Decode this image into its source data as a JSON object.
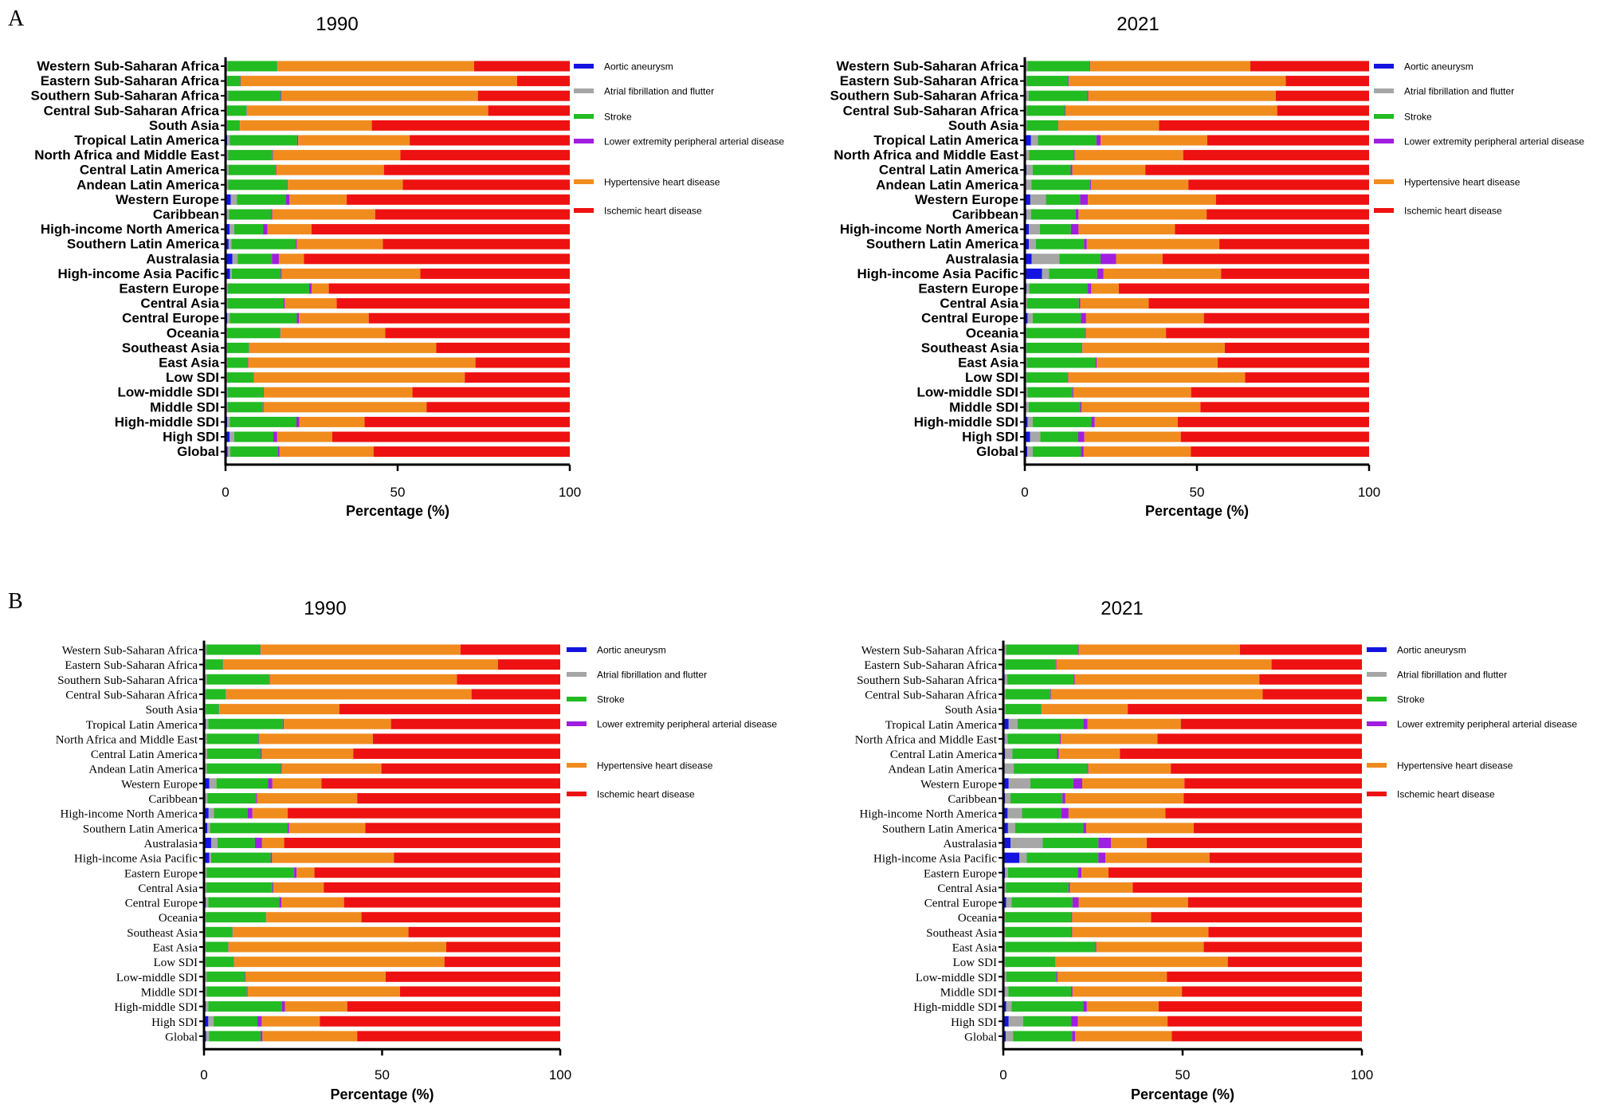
{
  "panels": [
    {
      "letter": "A"
    },
    {
      "letter": "B"
    }
  ],
  "chart_data": [
    {
      "type": "bar",
      "orientation": "horizontal",
      "stacked": true,
      "panel": "A",
      "title": "1990",
      "xlabel": "Percentage (%)",
      "ylabel": "",
      "xlim": [
        0,
        100
      ],
      "xticks": [
        "0",
        "50",
        "100"
      ],
      "legend_position": "right",
      "categories": [
        "Western Sub-Saharan Africa",
        "Eastern Sub-Saharan Africa",
        "Southern Sub-Saharan Africa",
        "Central Sub-Saharan Africa",
        "South Asia",
        "Tropical Latin America",
        "North Africa and Middle East",
        "Central Latin America",
        "Andean Latin America",
        "Western Europe",
        "Caribbean",
        "High-income North America",
        "Southern Latin America",
        "Australasia",
        "High-income Asia Pacific",
        "Eastern Europe",
        "Central Asia",
        "Central Europe",
        "Oceania",
        "Southeast Asia",
        "East Asia",
        "Low SDI",
        "Low-middle SDI",
        "Middle SDI",
        "High-middle SDI",
        "High SDI",
        "Global"
      ],
      "series": [
        {
          "name": "Aortic aneurysm",
          "color": "#1414e0",
          "values": [
            0.3,
            0.2,
            0.3,
            0.2,
            0.2,
            0.5,
            0.3,
            0.3,
            0.3,
            1.5,
            0.4,
            1.2,
            0.9,
            2.0,
            1.3,
            0.3,
            0.3,
            0.5,
            0.2,
            0.2,
            0.2,
            0.2,
            0.3,
            0.3,
            0.5,
            1.2,
            0.6
          ]
        },
        {
          "name": "Atrial fibrillation and flutter",
          "color": "#a6a6a6",
          "values": [
            0.4,
            0.3,
            0.5,
            0.3,
            0.3,
            0.7,
            0.5,
            0.6,
            0.5,
            1.8,
            0.6,
            1.3,
            0.8,
            1.5,
            0.5,
            0.4,
            0.3,
            0.7,
            0.3,
            0.3,
            0.3,
            0.3,
            0.4,
            0.4,
            0.7,
            1.3,
            0.8
          ]
        },
        {
          "name": "Stroke",
          "color": "#22bb22",
          "values": [
            14.3,
            3.8,
            15.2,
            5.6,
            3.6,
            19.6,
            12.8,
            13.6,
            17.1,
            14.3,
            12.3,
            8.4,
            18.7,
            10.0,
            14.2,
            23.6,
            16.3,
            19.5,
            15.4,
            6.3,
            6.0,
            7.6,
            10.2,
            10.1,
            19.4,
            11.4,
            13.8
          ]
        },
        {
          "name": "Lower extremity peripheral arterial disease",
          "color": "#a01ee0",
          "values": [
            0.1,
            0.1,
            0.2,
            0.1,
            0.1,
            0.3,
            0.2,
            0.2,
            0.2,
            1.0,
            0.3,
            1.3,
            0.3,
            2.0,
            0.3,
            0.7,
            0.3,
            0.6,
            0.1,
            0.1,
            0.1,
            0.1,
            0.2,
            0.2,
            0.8,
            1.1,
            0.5
          ]
        },
        {
          "name": "Hypertensive heart disease",
          "color": "#f08c1e",
          "values": [
            57.1,
            80.3,
            57.1,
            70.1,
            38.3,
            32.4,
            37.0,
            31.3,
            33.4,
            16.6,
            29.9,
            12.8,
            25.0,
            7.3,
            40.3,
            5.0,
            15.1,
            20.3,
            30.4,
            54.3,
            66.0,
            61.3,
            43.2,
            47.4,
            19.0,
            16.0,
            27.3
          ]
        },
        {
          "name": "Ischemic heart disease",
          "color": "#ee1111",
          "values": [
            27.8,
            15.3,
            26.7,
            23.7,
            57.5,
            46.5,
            49.2,
            54.0,
            48.5,
            64.8,
            56.5,
            75.0,
            54.3,
            77.2,
            43.4,
            70.0,
            67.7,
            58.4,
            53.6,
            38.8,
            27.4,
            30.5,
            45.7,
            41.6,
            59.6,
            69.0,
            57.0
          ]
        }
      ]
    },
    {
      "type": "bar",
      "orientation": "horizontal",
      "stacked": true,
      "panel": "A",
      "title": "2021",
      "xlabel": "Percentage (%)",
      "ylabel": "",
      "xlim": [
        0,
        100
      ],
      "xticks": [
        "0",
        "50",
        "100"
      ],
      "legend_position": "right",
      "categories": [
        "Western Sub-Saharan Africa",
        "Eastern Sub-Saharan Africa",
        "Southern Sub-Saharan Africa",
        "Central Sub-Saharan Africa",
        "South Asia",
        "Tropical Latin America",
        "North Africa and Middle East",
        "Central Latin America",
        "Andean Latin America",
        "Western Europe",
        "Caribbean",
        "High-income North America",
        "Southern Latin America",
        "Australasia",
        "High-income Asia Pacific",
        "Eastern Europe",
        "Central Asia",
        "Central Europe",
        "Oceania",
        "Southeast Asia",
        "East Asia",
        "Low SDI",
        "Low-middle SDI",
        "Middle SDI",
        "High-middle SDI",
        "High SDI",
        "Global"
      ],
      "series": [
        {
          "name": "Aortic aneurysm",
          "color": "#1414e0",
          "values": [
            0.3,
            0.2,
            0.4,
            0.2,
            0.2,
            1.8,
            0.4,
            0.5,
            0.4,
            1.6,
            0.5,
            1.2,
            1.2,
            2.0,
            5.0,
            0.5,
            0.3,
            0.8,
            0.2,
            0.2,
            0.2,
            0.2,
            0.3,
            0.4,
            0.8,
            1.5,
            0.7
          ]
        },
        {
          "name": "Atrial fibrillation and flutter",
          "color": "#a6a6a6",
          "values": [
            0.5,
            0.4,
            0.7,
            0.4,
            0.4,
            2.0,
            0.8,
            1.8,
            1.5,
            4.5,
            1.3,
            3.2,
            2.0,
            8.0,
            2.0,
            0.8,
            0.4,
            1.5,
            0.3,
            0.3,
            0.4,
            0.3,
            0.5,
            0.7,
            1.5,
            3.0,
            1.6
          ]
        },
        {
          "name": "Stroke",
          "color": "#22bb22",
          "values": [
            18.0,
            12.0,
            17.0,
            11.0,
            9.0,
            17.0,
            13.0,
            11.0,
            17.0,
            10.0,
            13.0,
            9.0,
            14.0,
            12.0,
            14.0,
            17.0,
            15.0,
            14.0,
            17.0,
            16.0,
            20.0,
            12.0,
            13.0,
            15.0,
            17.0,
            11.0,
            14.0
          ]
        },
        {
          "name": "Lower extremity peripheral arterial disease",
          "color": "#a01ee0",
          "values": [
            0.2,
            0.2,
            0.3,
            0.2,
            0.1,
            1.2,
            0.3,
            0.5,
            0.3,
            2.2,
            0.8,
            2.2,
            0.8,
            4.5,
            1.8,
            1.0,
            0.4,
            1.5,
            0.2,
            0.2,
            0.3,
            0.1,
            0.3,
            0.4,
            1.0,
            1.8,
            0.8
          ]
        },
        {
          "name": "Hypertensive heart disease",
          "color": "#f08c1e",
          "values": [
            46.5,
            63.0,
            54.5,
            61.5,
            29.3,
            31.0,
            31.5,
            21.2,
            28.3,
            37.2,
            37.2,
            28.0,
            38.5,
            13.5,
            34.2,
            8.0,
            19.9,
            34.2,
            23.3,
            41.4,
            35.1,
            51.4,
            34.2,
            34.5,
            24.1,
            28.0,
            31.1
          ]
        },
        {
          "name": "Ischemic heart disease",
          "color": "#ee1111",
          "values": [
            34.5,
            24.2,
            27.1,
            26.7,
            61.0,
            47.0,
            54.0,
            65.0,
            52.5,
            44.5,
            47.2,
            56.4,
            43.5,
            60.0,
            43.0,
            72.7,
            64.0,
            48.0,
            59.0,
            41.9,
            44.0,
            36.0,
            51.7,
            49.0,
            55.6,
            54.7,
            51.8
          ]
        }
      ]
    },
    {
      "type": "bar",
      "orientation": "horizontal",
      "stacked": true,
      "panel": "B",
      "title": "1990",
      "xlabel": "Percentage (%)",
      "ylabel": "",
      "xlim": [
        0,
        100
      ],
      "xticks": [
        "0",
        "50",
        "100"
      ],
      "legend_position": "right",
      "categories": [
        "Western Sub-Saharan Africa",
        "Eastern Sub-Saharan Africa",
        "Southern Sub-Saharan Africa",
        "Central Sub-Saharan Africa",
        "South Asia",
        "Tropical Latin America",
        "North Africa and Middle East",
        "Central Latin America",
        "Andean Latin America",
        "Western Europe",
        "Caribbean",
        "High-income North America",
        "Southern Latin America",
        "Australasia",
        "High-income Asia Pacific",
        "Eastern Europe",
        "Central Asia",
        "Central Europe",
        "Oceania",
        "Southeast Asia",
        "East Asia",
        "Low SDI",
        "Low-middle SDI",
        "Middle SDI",
        "High-middle SDI",
        "High SDI",
        "Global"
      ],
      "series": [
        {
          "name": "Aortic aneurysm",
          "color": "#1414e0",
          "values": [
            0.3,
            0.2,
            0.3,
            0.2,
            0.2,
            0.5,
            0.3,
            0.3,
            0.3,
            1.5,
            0.4,
            1.3,
            0.9,
            2.0,
            1.5,
            0.3,
            0.3,
            0.5,
            0.2,
            0.2,
            0.2,
            0.2,
            0.3,
            0.3,
            0.5,
            1.2,
            0.6
          ]
        },
        {
          "name": "Atrial fibrillation and flutter",
          "color": "#a6a6a6",
          "values": [
            0.4,
            0.3,
            0.5,
            0.3,
            0.3,
            0.7,
            0.5,
            0.6,
            0.5,
            2.0,
            0.6,
            1.5,
            0.8,
            1.8,
            0.5,
            0.4,
            0.3,
            0.7,
            0.3,
            0.3,
            0.3,
            0.3,
            0.4,
            0.4,
            0.7,
            1.5,
            0.8
          ]
        },
        {
          "name": "Stroke",
          "color": "#22bb22",
          "values": [
            15.1,
            4.8,
            17.5,
            5.6,
            3.7,
            20.9,
            14.5,
            15.0,
            20.8,
            14.5,
            13.6,
            9.5,
            21.8,
            10.5,
            16.7,
            24.6,
            18.6,
            19.9,
            16.9,
            7.5,
            6.3,
            7.8,
            10.8,
            11.3,
            20.7,
            12.3,
            14.5
          ]
        },
        {
          "name": "Lower extremity peripheral arterial disease",
          "color": "#a01ee0",
          "values": [
            0.1,
            0.1,
            0.2,
            0.1,
            0.1,
            0.3,
            0.2,
            0.3,
            0.2,
            1.2,
            0.3,
            1.3,
            0.4,
            2.0,
            0.4,
            0.7,
            0.3,
            0.6,
            0.1,
            0.1,
            0.1,
            0.1,
            0.2,
            0.2,
            0.8,
            1.2,
            0.5
          ]
        },
        {
          "name": "Hypertensive heart disease",
          "color": "#f08c1e",
          "values": [
            56.1,
            77.1,
            52.5,
            68.9,
            33.7,
            30.1,
            31.9,
            25.7,
            28.0,
            13.8,
            28.1,
            9.9,
            21.4,
            6.2,
            34.2,
            5.0,
            14.1,
            17.6,
            26.7,
            49.3,
            61.1,
            59.1,
            39.3,
            42.8,
            17.5,
            16.3,
            26.6
          ]
        },
        {
          "name": "Ischemic heart disease",
          "color": "#ee1111",
          "values": [
            28.0,
            17.5,
            29.0,
            24.9,
            62.0,
            47.5,
            52.6,
            58.1,
            50.2,
            67.0,
            57.0,
            76.5,
            54.7,
            77.5,
            46.7,
            69.0,
            66.4,
            60.7,
            55.8,
            42.6,
            32.0,
            32.5,
            49.0,
            45.0,
            59.8,
            67.5,
            57.0
          ]
        }
      ]
    },
    {
      "type": "bar",
      "orientation": "horizontal",
      "stacked": true,
      "panel": "B",
      "title": "2021",
      "xlabel": "Percentage (%)",
      "ylabel": "",
      "xlim": [
        0,
        100
      ],
      "xticks": [
        "0",
        "50",
        "100"
      ],
      "legend_position": "right",
      "categories": [
        "Western Sub-Saharan Africa",
        "Eastern Sub-Saharan Africa",
        "Southern Sub-Saharan Africa",
        "Central Sub-Saharan Africa",
        "South Asia",
        "Tropical Latin America",
        "North Africa and Middle East",
        "Central Latin America",
        "Andean Latin America",
        "Western Europe",
        "Caribbean",
        "High-income North America",
        "Southern Latin America",
        "Australasia",
        "High-income Asia Pacific",
        "Eastern Europe",
        "Central Asia",
        "Central Europe",
        "Oceania",
        "Southeast Asia",
        "East Asia",
        "Low SDI",
        "Low-middle SDI",
        "Middle SDI",
        "High-middle SDI",
        "High SDI",
        "Global"
      ],
      "series": [
        {
          "name": "Aortic aneurysm",
          "color": "#1414e0",
          "values": [
            0.3,
            0.2,
            0.4,
            0.2,
            0.2,
            1.5,
            0.4,
            0.5,
            0.4,
            1.5,
            0.5,
            1.2,
            1.3,
            2.0,
            4.5,
            0.5,
            0.3,
            0.8,
            0.2,
            0.2,
            0.2,
            0.2,
            0.3,
            0.4,
            0.8,
            1.5,
            0.7
          ]
        },
        {
          "name": "Atrial fibrillation and flutter",
          "color": "#a6a6a6",
          "values": [
            0.5,
            0.4,
            0.7,
            0.4,
            0.4,
            2.5,
            0.8,
            2.0,
            2.5,
            6.0,
            1.5,
            4.0,
            2.0,
            9.0,
            2.0,
            0.8,
            0.4,
            1.5,
            0.3,
            0.3,
            0.4,
            0.3,
            0.5,
            1.0,
            1.5,
            4.0,
            2.0
          ]
        },
        {
          "name": "Stroke",
          "color": "#22bb22",
          "values": [
            20.0,
            14.0,
            18.5,
            12.5,
            10.0,
            18.3,
            14.5,
            12.5,
            20.5,
            12.0,
            14.5,
            11.0,
            19.0,
            15.5,
            20.0,
            19.5,
            17.5,
            17.0,
            18.5,
            18.5,
            25.0,
            14.0,
            14.0,
            17.5,
            20.0,
            13.5,
            16.5
          ]
        },
        {
          "name": "Lower extremity peripheral arterial disease",
          "color": "#a01ee0",
          "values": [
            0.2,
            0.2,
            0.3,
            0.2,
            0.1,
            1.2,
            0.3,
            0.5,
            0.3,
            2.5,
            0.8,
            2.0,
            0.8,
            3.5,
            2.0,
            1.0,
            0.4,
            1.7,
            0.2,
            0.2,
            0.3,
            0.1,
            0.3,
            0.4,
            1.0,
            1.8,
            0.8
          ]
        },
        {
          "name": "Hypertensive heart disease",
          "color": "#f08c1e",
          "values": [
            45.0,
            60.0,
            51.5,
            59.0,
            24.0,
            26.0,
            27.0,
            17.0,
            23.0,
            28.5,
            33.0,
            27.0,
            30.0,
            10.0,
            29.0,
            7.5,
            17.5,
            30.5,
            22.0,
            38.0,
            30.0,
            48.0,
            30.5,
            30.5,
            20.0,
            25.0,
            27.0
          ]
        },
        {
          "name": "Ischemic heart disease",
          "color": "#ee1111",
          "values": [
            34.0,
            25.2,
            28.6,
            27.7,
            65.3,
            50.5,
            57.0,
            67.5,
            53.3,
            49.5,
            49.7,
            54.8,
            46.9,
            60.0,
            42.5,
            70.7,
            63.9,
            48.5,
            58.8,
            42.8,
            44.1,
            37.4,
            54.4,
            50.2,
            56.7,
            54.2,
            53.0
          ]
        }
      ]
    }
  ]
}
